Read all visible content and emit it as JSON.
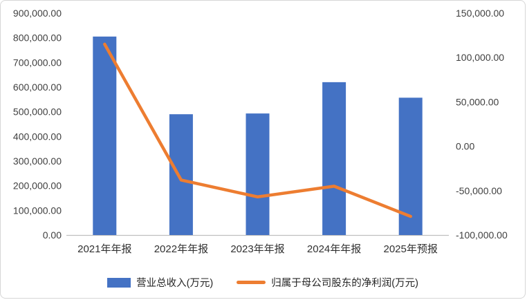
{
  "chart_data": {
    "type": "combo",
    "title": "",
    "categories": [
      "2021年年报",
      "2022年年报",
      "2023年年报",
      "2024年年报",
      "2025年预报"
    ],
    "series": [
      {
        "name": "营业总收入(万元)",
        "type": "bar",
        "axis": "left",
        "color": "#4472C4",
        "values": [
          805000,
          490000,
          493000,
          620000,
          557000
        ]
      },
      {
        "name": "归属于母公司股东的净利润(万元)",
        "type": "line",
        "axis": "right",
        "color": "#ED7D31",
        "values": [
          115000,
          -38000,
          -57000,
          -45000,
          -79000
        ]
      }
    ],
    "left_axis": {
      "min": 0,
      "max": 900000,
      "step": 100000,
      "ticks": [
        0,
        100000,
        200000,
        300000,
        400000,
        500000,
        600000,
        700000,
        800000,
        900000
      ]
    },
    "right_axis": {
      "min": -100000,
      "max": 150000,
      "step": 50000,
      "ticks": [
        -100000,
        -50000,
        0,
        50000,
        100000,
        150000
      ]
    },
    "grid": false,
    "legend_position": "bottom",
    "axis_line_color": "#bfbfbf"
  }
}
